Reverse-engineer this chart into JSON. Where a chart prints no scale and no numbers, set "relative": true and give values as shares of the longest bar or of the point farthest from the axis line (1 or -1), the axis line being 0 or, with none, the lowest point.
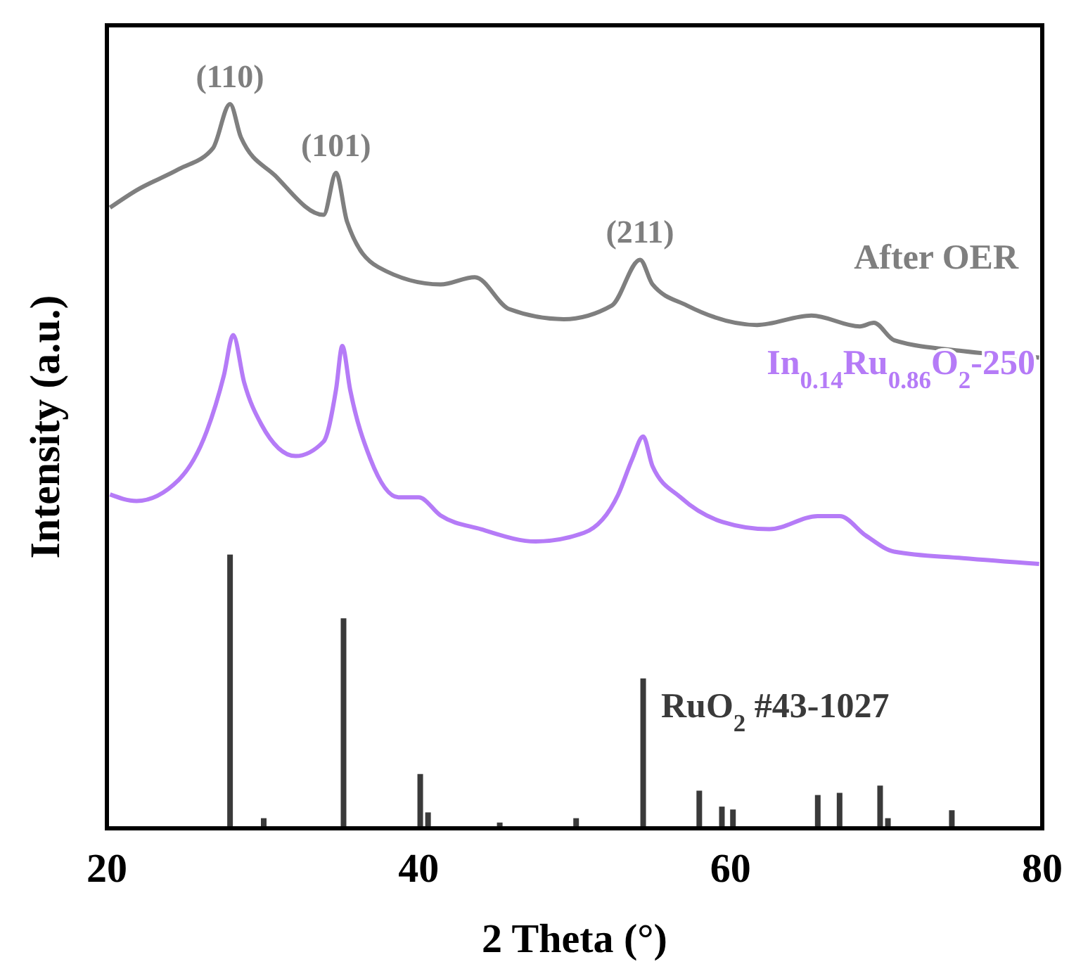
{
  "chart_data": {
    "type": "line",
    "relative": true,
    "xlabel": "2 Theta (°)",
    "ylabel": "Intensity (a.u.)",
    "xlim": [
      20,
      80
    ],
    "xticks": [
      20,
      40,
      60,
      80
    ],
    "tick_labels": "x",
    "grid": false,
    "legend": false,
    "annotations": [
      {
        "text": "(110)",
        "x": 27.9,
        "y": 1
      },
      {
        "text": "(101)",
        "x": 34.7,
        "y": 0.905
      },
      {
        "text": "(211)",
        "x": 54.2,
        "y": 0.785
      }
    ],
    "series": [
      {
        "name": "After OER",
        "color": "#7f7f7f",
        "x": [
          20.2,
          21.9,
          24.6,
          26.8,
          27.9,
          28.6,
          30.8,
          33.9,
          34.7,
          35.4,
          37.4,
          41.4,
          43.6,
          45.8,
          49.3,
          52.4,
          54.2,
          55.0,
          57.2,
          61.7,
          65.2,
          68.3,
          69.2,
          70.5,
          74.9,
          79.8
        ],
        "values": [
          0.857,
          0.881,
          0.91,
          0.939,
          1,
          0.954,
          0.901,
          0.847,
          0.905,
          0.838,
          0.775,
          0.751,
          0.761,
          0.717,
          0.703,
          0.722,
          0.785,
          0.751,
          0.722,
          0.695,
          0.708,
          0.693,
          0.698,
          0.674,
          0.659,
          0.65
        ]
      },
      {
        "name": "In$_{0.14}$Ru$_{0.86}$O$_{2}$-250",
        "color": "#b57bf7",
        "x": [
          20.2,
          21.9,
          24.6,
          26.4,
          27.5,
          28.1,
          28.8,
          29.9,
          32.1,
          33.9,
          34.7,
          35.1,
          35.6,
          36.9,
          38.7,
          40.0,
          41.4,
          44.0,
          47.5,
          50.6,
          52.8,
          53.7,
          54.4,
          55.0,
          56.8,
          59.5,
          62.5,
          65.6,
          67.0,
          68.7,
          70.5,
          74.9,
          79.8
        ],
        "values": [
          0.461,
          0.452,
          0.481,
          0.548,
          0.625,
          0.681,
          0.616,
          0.558,
          0.514,
          0.534,
          0.606,
          0.666,
          0.606,
          0.51,
          0.457,
          0.457,
          0.432,
          0.413,
          0.396,
          0.408,
          0.461,
          0.51,
          0.541,
          0.5,
          0.457,
          0.423,
          0.413,
          0.431,
          0.431,
          0.404,
          0.382,
          0.373,
          0.365
        ]
      },
      {
        "name": "RuO$_{2}$ #43-1027",
        "type": "bar",
        "color": "#3a3a3a",
        "x": [
          27.9,
          30.06,
          35.18,
          40.1,
          40.6,
          45.2,
          50.1,
          54.4,
          58.0,
          59.45,
          60.16,
          65.6,
          67.0,
          69.6,
          70.1,
          74.2
        ],
        "values": [
          0.378,
          0.014,
          0.29,
          0.075,
          0.022,
          0.008,
          0.014,
          0.207,
          0.052,
          0.03,
          0.026,
          0.046,
          0.049,
          0.059,
          0.014,
          0.025
        ]
      }
    ]
  }
}
